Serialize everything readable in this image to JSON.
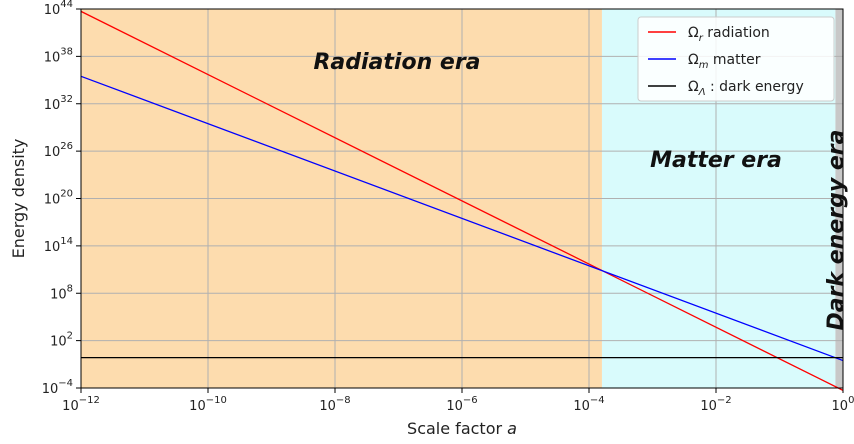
{
  "chart_data": {
    "type": "line",
    "xscale": "log",
    "yscale": "log",
    "xlim": [
      1e-12,
      1
    ],
    "ylim": [
      0.0001,
      1e+44
    ],
    "xlabel_main": "Scale factor ",
    "xlabel_var": "a",
    "ylabel": "Energy density",
    "grid": true,
    "legend_position": "top-right",
    "x_ticks": [
      {
        "value": 1e-12,
        "base": "10",
        "exp": "−12"
      },
      {
        "value": 1e-10,
        "base": "10",
        "exp": "−10"
      },
      {
        "value": 1e-08,
        "base": "10",
        "exp": "−8"
      },
      {
        "value": 1e-06,
        "base": "10",
        "exp": "−6"
      },
      {
        "value": 0.0001,
        "base": "10",
        "exp": "−4"
      },
      {
        "value": 0.01,
        "base": "10",
        "exp": "−2"
      },
      {
        "value": 1,
        "base": "10",
        "exp": "0"
      }
    ],
    "y_ticks": [
      {
        "value": 0.0001,
        "base": "10",
        "exp": "−4"
      },
      {
        "value": 100.0,
        "base": "10",
        "exp": "2"
      },
      {
        "value": 100000000.0,
        "base": "10",
        "exp": "8"
      },
      {
        "value": 100000000000000.0,
        "base": "10",
        "exp": "14"
      },
      {
        "value": 1e+20,
        "base": "10",
        "exp": "20"
      },
      {
        "value": 1e+26,
        "base": "10",
        "exp": "26"
      },
      {
        "value": 1e+32,
        "base": "10",
        "exp": "32"
      },
      {
        "value": 1e+38,
        "base": "10",
        "exp": "38"
      },
      {
        "value": 1e+44,
        "base": "10",
        "exp": "44"
      }
    ],
    "regions": [
      {
        "label": "Radiation era",
        "x0": 1e-12,
        "x1": 0.00016,
        "color": "#fddcae"
      },
      {
        "label": "Matter era",
        "x0": 0.00016,
        "x1": 0.76,
        "color": "#d9fbfc"
      },
      {
        "label": "Dark energy era",
        "x0": 0.76,
        "x1": 1,
        "color": "#c8c8c8"
      }
    ],
    "series": [
      {
        "symbol": "Ω",
        "sub": "r",
        "suffix": " radiation",
        "color": "#ff0000",
        "x": [
          1e-12,
          1
        ],
        "y": [
          5e+43,
          5e-05
        ]
      },
      {
        "symbol": "Ω",
        "sub": "m",
        "suffix": " matter",
        "color": "#0000ff",
        "x": [
          1e-12,
          1
        ],
        "y": [
          3e+35,
          0.3
        ]
      },
      {
        "symbol": "Ω",
        "sub": "Λ",
        "suffix": " : dark energy",
        "color": "#000000",
        "x": [
          1e-12,
          1
        ],
        "y": [
          0.7,
          0.7
        ]
      }
    ]
  }
}
